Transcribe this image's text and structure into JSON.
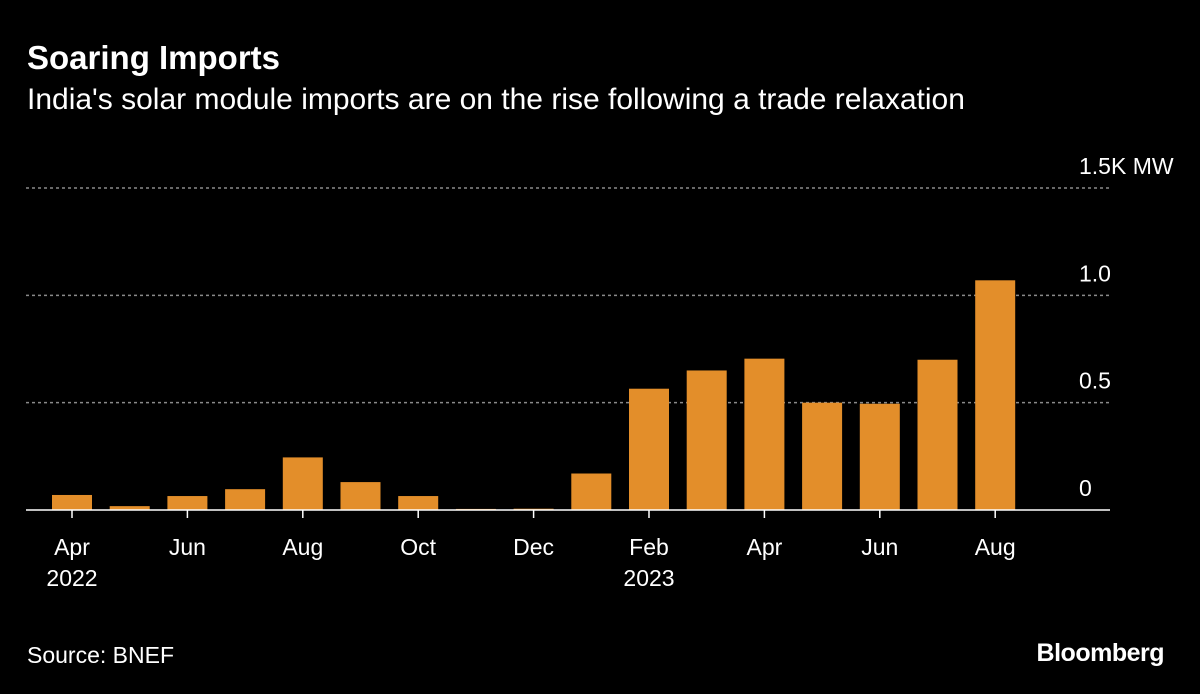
{
  "header": {
    "title": "Soaring Imports",
    "subtitle": "India's solar module imports are on the rise following a trade relaxation"
  },
  "footer": {
    "source": "Source: BNEF",
    "brand": "Bloomberg"
  },
  "colors": {
    "background": "#000000",
    "bar": "#e38e2a",
    "gridline": "#8a8a8a",
    "text": "#ffffff"
  },
  "chart_data": {
    "type": "bar",
    "title": "Soaring Imports",
    "subtitle": "India's solar module imports are on the rise following a trade relaxation",
    "ylabel": "MW",
    "ylim": [
      0,
      1500
    ],
    "yticks": [
      {
        "value": 0,
        "label": "0"
      },
      {
        "value": 500,
        "label": "0.5"
      },
      {
        "value": 1000,
        "label": "1.0"
      },
      {
        "value": 1500,
        "label": "1.5K MW"
      }
    ],
    "grid": true,
    "categories": [
      "Apr 2022",
      "May 2022",
      "Jun 2022",
      "Jul 2022",
      "Aug 2022",
      "Sep 2022",
      "Oct 2022",
      "Nov 2022",
      "Dec 2022",
      "Jan 2023",
      "Feb 2023",
      "Mar 2023",
      "Apr 2023",
      "May 2023",
      "Jun 2023",
      "Jul 2023",
      "Aug 2023"
    ],
    "values": [
      70,
      18,
      65,
      97,
      245,
      130,
      65,
      5,
      6,
      170,
      565,
      650,
      705,
      500,
      495,
      700,
      1070
    ],
    "xticks": [
      {
        "index": 0,
        "label": "Apr",
        "sublabel": "2022"
      },
      {
        "index": 2,
        "label": "Jun"
      },
      {
        "index": 4,
        "label": "Aug"
      },
      {
        "index": 6,
        "label": "Oct"
      },
      {
        "index": 8,
        "label": "Dec"
      },
      {
        "index": 10,
        "label": "Feb",
        "sublabel": "2023"
      },
      {
        "index": 12,
        "label": "Apr"
      },
      {
        "index": 14,
        "label": "Jun"
      },
      {
        "index": 16,
        "label": "Aug"
      }
    ],
    "source": "BNEF"
  }
}
